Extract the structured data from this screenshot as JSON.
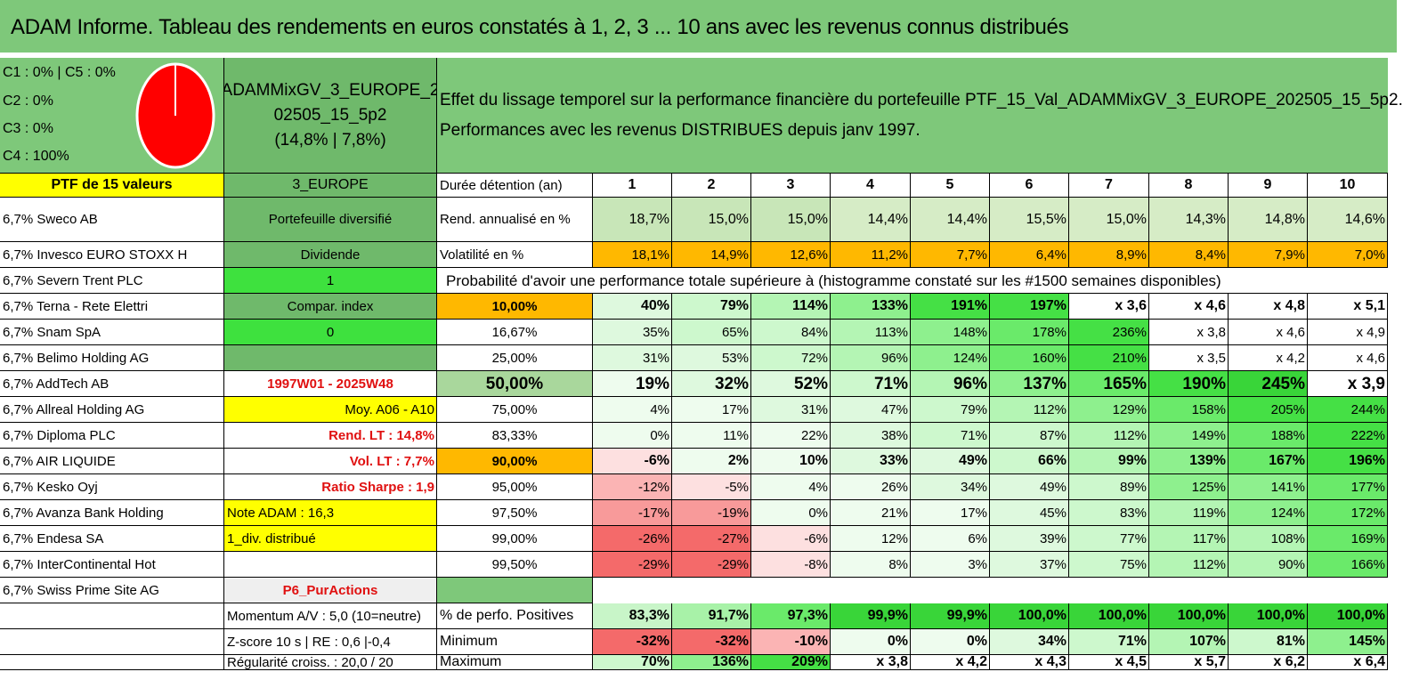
{
  "title": "ADAM Informe. Tableau des rendements en euros constatés à 1, 2, 3 ... 10 ans avec les revenus connus distribués",
  "colors": {
    "header_green": "#7ec87a",
    "yellow": "#ffff00",
    "bright_green": "#3ee13e",
    "orange": "#ffb800",
    "pie_red": "#ff0000"
  },
  "allocation": {
    "c1c5": "C1 : 0% | C5 : 0%",
    "c2": "C2 : 0%",
    "c3": "C3 : 0%",
    "c4": "C4 : 100%"
  },
  "fund": {
    "name_line1": "ADAMMixGV_3_EUROPE_2",
    "name_line2": "02505_15_5p2",
    "stats": "(14,8% | 7,8%)"
  },
  "effect": {
    "line1": "Effet du lissage temporel sur la performance financière du portefeuille PTF_15_Val_ADAMMixGV_3_EUROPE_202505_15_5p2.",
    "line2": "Performances avec les revenus DISTRIBUES depuis janv 1997."
  },
  "ptf_label": "PTF de 15 valeurs",
  "region": "3_EUROPE",
  "duration_label": "Durée détention (an)",
  "years": [
    "1",
    "2",
    "3",
    "4",
    "5",
    "6",
    "7",
    "8",
    "9",
    "10"
  ],
  "holdings": [
    "6,7% Sweco AB",
    "6,7% Invesco EURO STOXX H",
    "6,7% Severn Trent PLC",
    "6,7% Terna - Rete Elettri",
    "6,7% Snam SpA",
    "6,7% Belimo Holding AG",
    "6,7% AddTech AB",
    "6,7% Allreal Holding AG",
    "6,7% Diploma PLC",
    "6,7% AIR LIQUIDE",
    "6,7% Kesko Oyj",
    "6,7% Avanza Bank Holding",
    "6,7% Endesa SA",
    "6,7% InterContinental Hot",
    "6,7% Swiss Prime Site AG"
  ],
  "side_info": [
    "Portefeuille diversifié",
    "Dividende",
    "1",
    "Compar. index",
    "0",
    "",
    "1997W01 - 2025W48",
    "Moy. A06 - A10",
    "Rend. LT : 14,8%",
    "Vol. LT : 7,7%",
    "Ratio Sharpe : 1,9",
    "Note ADAM : 16,3",
    "1_div. distribué",
    "",
    "P6_PurActions"
  ],
  "rend": {
    "label": "Rend. annualisé en %",
    "values": [
      "18,7%",
      "15,0%",
      "15,0%",
      "14,4%",
      "14,4%",
      "15,5%",
      "15,0%",
      "14,3%",
      "14,8%",
      "14,6%"
    ]
  },
  "vol": {
    "label": "Volatilité en %",
    "values": [
      "18,1%",
      "14,9%",
      "12,6%",
      "11,2%",
      "7,7%",
      "6,4%",
      "8,9%",
      "8,4%",
      "7,9%",
      "7,0%"
    ]
  },
  "prob_label": "Probabilité d'avoir une performance totale supérieure à (histogramme constaté sur les #1500 semaines disponibles)",
  "probabilities": [
    {
      "p": "10,00%",
      "v": [
        "40%",
        "79%",
        "114%",
        "133%",
        "191%",
        "197%",
        "x 3,6",
        "x 4,6",
        "x 4,8",
        "x 5,1"
      ]
    },
    {
      "p": "16,67%",
      "v": [
        "35%",
        "65%",
        "84%",
        "113%",
        "148%",
        "178%",
        "236%",
        "x 3,8",
        "x 4,6",
        "x 4,9"
      ]
    },
    {
      "p": "25,00%",
      "v": [
        "31%",
        "53%",
        "72%",
        "96%",
        "124%",
        "160%",
        "210%",
        "x 3,5",
        "x 4,2",
        "x 4,6"
      ]
    },
    {
      "p": "50,00%",
      "v": [
        "19%",
        "32%",
        "52%",
        "71%",
        "96%",
        "137%",
        "165%",
        "190%",
        "245%",
        "x 3,9"
      ]
    },
    {
      "p": "75,00%",
      "v": [
        "4%",
        "17%",
        "31%",
        "47%",
        "79%",
        "112%",
        "129%",
        "158%",
        "205%",
        "244%"
      ]
    },
    {
      "p": "83,33%",
      "v": [
        "0%",
        "11%",
        "22%",
        "38%",
        "71%",
        "87%",
        "112%",
        "149%",
        "188%",
        "222%"
      ]
    },
    {
      "p": "90,00%",
      "v": [
        "-6%",
        "2%",
        "10%",
        "33%",
        "49%",
        "66%",
        "99%",
        "139%",
        "167%",
        "196%"
      ]
    },
    {
      "p": "95,00%",
      "v": [
        "-12%",
        "-5%",
        "4%",
        "26%",
        "34%",
        "49%",
        "89%",
        "125%",
        "141%",
        "177%"
      ]
    },
    {
      "p": "97,50%",
      "v": [
        "-17%",
        "-19%",
        "0%",
        "21%",
        "17%",
        "45%",
        "83%",
        "119%",
        "124%",
        "172%"
      ]
    },
    {
      "p": "99,00%",
      "v": [
        "-26%",
        "-27%",
        "-6%",
        "12%",
        "6%",
        "39%",
        "77%",
        "117%",
        "108%",
        "169%"
      ]
    },
    {
      "p": "99,50%",
      "v": [
        "-29%",
        "-29%",
        "-8%",
        "8%",
        "3%",
        "37%",
        "75%",
        "112%",
        "90%",
        "166%"
      ]
    }
  ],
  "footer": [
    {
      "info": "Momentum A/V : 5,0 (10=neutre)",
      "label": "% de perfo. Positives",
      "v": [
        "83,3%",
        "91,7%",
        "97,3%",
        "99,9%",
        "99,9%",
        "100,0%",
        "100,0%",
        "100,0%",
        "100,0%",
        "100,0%"
      ]
    },
    {
      "info": "Z-score 10 s | RE : 0,6 |-0,4",
      "label": "Minimum",
      "v": [
        "-32%",
        "-32%",
        "-10%",
        "0%",
        "0%",
        "34%",
        "71%",
        "107%",
        "81%",
        "145%"
      ]
    },
    {
      "info": "Régularité croiss. : 20,0 / 20",
      "label": "Maximum",
      "v": [
        "70%",
        "136%",
        "209%",
        "x 3,8",
        "x 4,2",
        "x 4,3",
        "x 4,5",
        "x 5,7",
        "x 6,2",
        "x 6,4"
      ]
    }
  ]
}
